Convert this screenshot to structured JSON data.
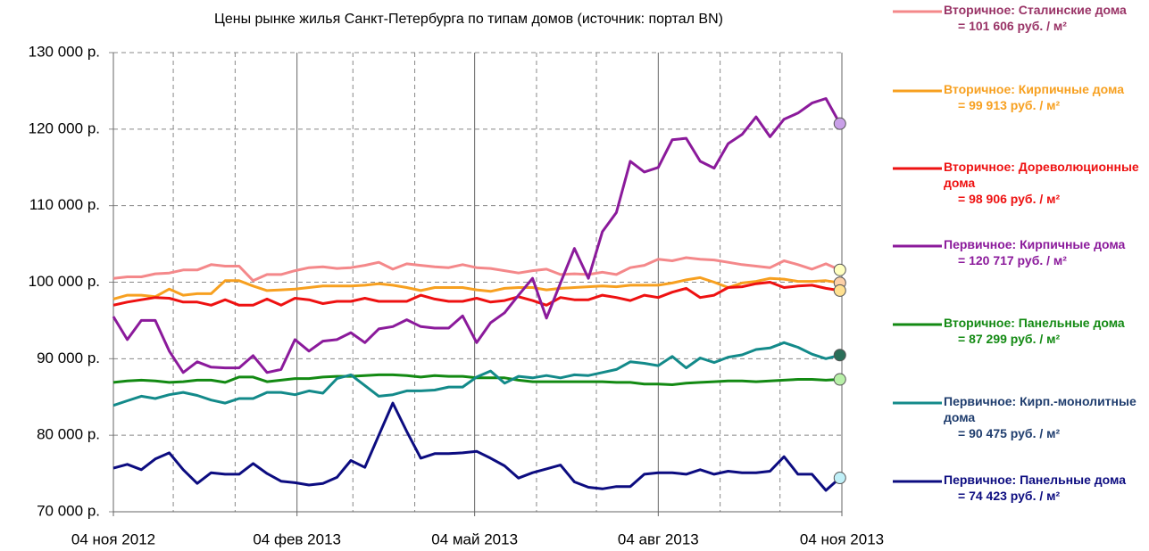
{
  "chart_data": {
    "type": "line",
    "title": "Цены рынке жилья Санкт-Петербурга по типам домов (источник: портал BN)",
    "x": [
      "2012-11-04",
      "2012-11-11",
      "2012-11-18",
      "2012-11-25",
      "2012-12-02",
      "2012-12-09",
      "2012-12-16",
      "2012-12-23",
      "2012-12-30",
      "2013-01-06",
      "2013-01-13",
      "2013-01-20",
      "2013-01-27",
      "2013-02-03",
      "2013-02-10",
      "2013-02-17",
      "2013-02-24",
      "2013-03-03",
      "2013-03-10",
      "2013-03-17",
      "2013-03-24",
      "2013-03-31",
      "2013-04-07",
      "2013-04-14",
      "2013-04-21",
      "2013-04-28",
      "2013-05-05",
      "2013-05-12",
      "2013-05-19",
      "2013-05-26",
      "2013-06-02",
      "2013-06-09",
      "2013-06-16",
      "2013-06-23",
      "2013-06-30",
      "2013-07-07",
      "2013-07-14",
      "2013-07-21",
      "2013-07-28",
      "2013-08-04",
      "2013-08-11",
      "2013-08-18",
      "2013-08-25",
      "2013-09-01",
      "2013-09-08",
      "2013-09-15",
      "2013-09-22",
      "2013-09-29",
      "2013-10-06",
      "2013-10-13",
      "2013-10-20",
      "2013-10-27",
      "2013-11-03"
    ],
    "xlim": [
      "2012-11-04",
      "2013-11-04"
    ],
    "xticks": [
      {
        "value": "2012-11-04",
        "label": "04 ноя 2012"
      },
      {
        "value": "2013-02-04",
        "label": "04 фев 2013"
      },
      {
        "value": "2013-05-04",
        "label": "04 май 2013"
      },
      {
        "value": "2013-08-04",
        "label": "04 авг 2013"
      },
      {
        "value": "2013-11-04",
        "label": "04 ноя 2013"
      }
    ],
    "xminorticks": [
      "2012-12-04",
      "2013-01-04",
      "2013-03-04",
      "2013-04-04",
      "2013-06-04",
      "2013-07-04",
      "2013-09-04",
      "2013-10-04"
    ],
    "ylim": [
      70000,
      130000
    ],
    "yticks": [
      {
        "value": 70000,
        "label": "70 000 р."
      },
      {
        "value": 80000,
        "label": "80 000 р."
      },
      {
        "value": 90000,
        "label": "90 000 р."
      },
      {
        "value": 100000,
        "label": "100 000 р."
      },
      {
        "value": 110000,
        "label": "110 000 р."
      },
      {
        "value": 120000,
        "label": "120 000 р."
      },
      {
        "value": 130000,
        "label": "130 000 р."
      }
    ],
    "grid": true,
    "legend": "right",
    "series": [
      {
        "name": "Вторичное: Сталинские дома",
        "legend_label": "= 101 606 руб. / м²",
        "color": "#f4888a",
        "label_color": "#993366",
        "marker_color": "#ffffc0",
        "values": [
          100500,
          100700,
          100700,
          101100,
          101200,
          101600,
          101600,
          102300,
          102100,
          102100,
          100200,
          101000,
          101000,
          101500,
          101900,
          102000,
          101800,
          101900,
          102200,
          102600,
          101700,
          102400,
          102200,
          102000,
          101900,
          102300,
          101900,
          101800,
          101500,
          101200,
          101500,
          101700,
          101000,
          101100,
          101000,
          101300,
          101000,
          101900,
          102200,
          103000,
          102800,
          103200,
          103000,
          102900,
          102600,
          102300,
          102100,
          101900,
          102800,
          102300,
          101700,
          102400,
          101606
        ]
      },
      {
        "name": "Вторичное: Кирпичные дома",
        "legend_label": "= 99 913 руб. / м²",
        "color": "#f7a020",
        "label_color": "#f7a020",
        "marker_color": "#fcd0a8",
        "values": [
          97800,
          98300,
          98300,
          98100,
          99100,
          98300,
          98500,
          98500,
          100200,
          100200,
          99500,
          98900,
          99000,
          99100,
          99300,
          99500,
          99500,
          99500,
          99600,
          99800,
          99600,
          99300,
          98900,
          99300,
          99300,
          99300,
          99000,
          98800,
          99200,
          99300,
          99300,
          99000,
          99200,
          99300,
          99400,
          99500,
          99400,
          99600,
          99600,
          99600,
          99900,
          100300,
          100600,
          100000,
          99300,
          99900,
          100100,
          100500,
          100400,
          100100,
          100100,
          100200,
          99913
        ]
      },
      {
        "name": "Вторичное: Дореволюционные дома",
        "legend_label": "= 98 906 руб. / м²",
        "color": "#ee1111",
        "label_color": "#ee1111",
        "marker_color": "#ffe090",
        "values": [
          97000,
          97400,
          97700,
          98000,
          97900,
          97400,
          97400,
          97000,
          97700,
          97000,
          97000,
          97800,
          97000,
          97900,
          97700,
          97200,
          97500,
          97500,
          97900,
          97500,
          97500,
          97500,
          98300,
          97800,
          97500,
          97500,
          97900,
          97400,
          97600,
          98100,
          97600,
          97000,
          98000,
          97700,
          97700,
          98300,
          98000,
          97600,
          98300,
          98000,
          98700,
          99200,
          98000,
          98300,
          99300,
          99400,
          99800,
          100000,
          99300,
          99500,
          99600,
          99200,
          98906
        ]
      },
      {
        "name": "Первичное: Кирпичные дома",
        "legend_label": "= 120 717 руб. / м²",
        "color": "#8b1a9b",
        "label_color": "#8b1a9b",
        "marker_color": "#c9a0e8",
        "values": [
          95500,
          92500,
          95000,
          95000,
          91000,
          88200,
          89600,
          88900,
          88800,
          88800,
          90400,
          88200,
          88600,
          92500,
          91000,
          92300,
          92500,
          93400,
          92100,
          93900,
          94200,
          95100,
          94200,
          94000,
          94000,
          95600,
          92100,
          94700,
          96000,
          98300,
          100500,
          95300,
          99900,
          104400,
          100500,
          106600,
          109100,
          115800,
          114400,
          115000,
          118600,
          118800,
          115800,
          114900,
          118100,
          119300,
          121600,
          119000,
          121300,
          122100,
          123400,
          124000,
          120717
        ]
      },
      {
        "name": "Вторичное: Панельные дома",
        "legend_label": "= 87 299 руб. / м²",
        "color": "#138a13",
        "label_color": "#138a13",
        "marker_color": "#b8f0a8",
        "values": [
          86900,
          87100,
          87200,
          87100,
          86900,
          87000,
          87200,
          87200,
          86900,
          87600,
          87600,
          87000,
          87200,
          87400,
          87400,
          87600,
          87700,
          87700,
          87800,
          87900,
          87900,
          87800,
          87600,
          87800,
          87700,
          87700,
          87500,
          87500,
          87500,
          87200,
          87000,
          87000,
          87000,
          87000,
          87000,
          87000,
          86900,
          86900,
          86700,
          86700,
          86600,
          86800,
          86900,
          87000,
          87100,
          87100,
          87000,
          87100,
          87200,
          87300,
          87300,
          87200,
          87299
        ]
      },
      {
        "name": "Первичное: Кирп.-монолитные дома",
        "legend_label": "= 90 475 руб. / м²",
        "color": "#138a8a",
        "label_color": "#1f3d6e",
        "marker_color": "#2a6e58",
        "values": [
          83900,
          84500,
          85100,
          84800,
          85300,
          85600,
          85200,
          84600,
          84200,
          84800,
          84800,
          85600,
          85600,
          85300,
          85800,
          85500,
          87400,
          87900,
          86500,
          85100,
          85300,
          85800,
          85800,
          85900,
          86300,
          86300,
          87600,
          88400,
          86800,
          87700,
          87500,
          87800,
          87500,
          87900,
          87800,
          88200,
          88600,
          89600,
          89400,
          89100,
          90300,
          88800,
          90100,
          89500,
          90200,
          90500,
          91200,
          91400,
          92100,
          91500,
          90600,
          90000,
          90475
        ]
      },
      {
        "name": "Первичное: Панельные дома",
        "legend_label": "= 74 423 руб. / м²",
        "color": "#0c0c80",
        "label_color": "#0c0c80",
        "marker_color": "#c0f0f8",
        "values": [
          75700,
          76200,
          75500,
          76900,
          77700,
          75500,
          73700,
          75100,
          74900,
          74900,
          76300,
          75000,
          74000,
          73800,
          73500,
          73700,
          74500,
          76700,
          75800,
          80000,
          84200,
          80500,
          77000,
          77600,
          77600,
          77700,
          77900,
          77000,
          76000,
          74400,
          75100,
          75600,
          76100,
          73900,
          73200,
          73000,
          73300,
          73300,
          74900,
          75100,
          75100,
          74900,
          75500,
          74900,
          75300,
          75100,
          75100,
          75300,
          77200,
          74900,
          74900,
          72800,
          74423
        ]
      }
    ]
  }
}
